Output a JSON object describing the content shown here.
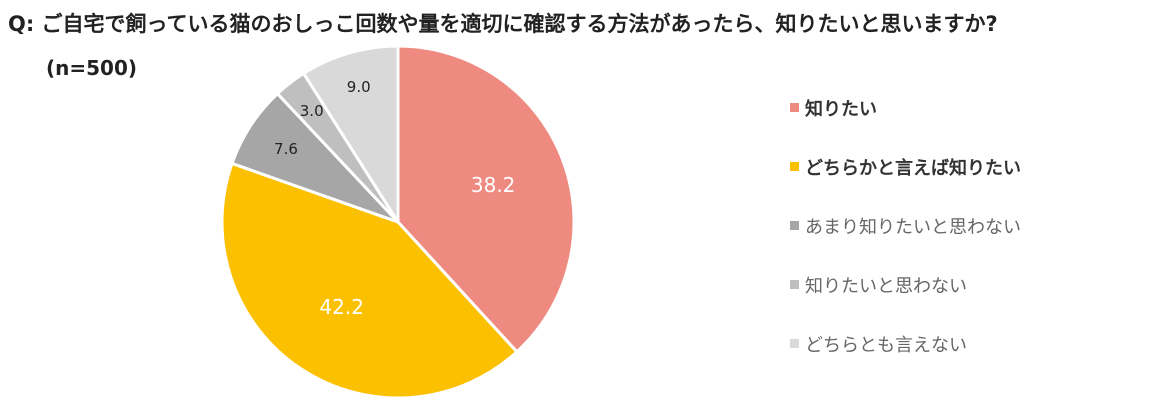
{
  "title": "Q: ご自宅で飼っている猫のおしっこ回数や量を適切に確認する方法があったら、知りたいと思いますか?",
  "subtitle": "(n=500)",
  "chart_data": {
    "type": "pie",
    "start_angle_deg": 0,
    "direction": "clockwise",
    "slice_border_color": "#ffffff",
    "slices": [
      {
        "label": "知りたい",
        "value": 38.2,
        "value_label": "38.2",
        "color": "#EE8A80",
        "label_color": "#ffffff",
        "emphasis": true
      },
      {
        "label": "どちらかと言えば知りたい",
        "value": 42.2,
        "value_label": "42.2",
        "color": "#FBC000",
        "label_color": "#ffffff",
        "emphasis": true
      },
      {
        "label": "あまり知りたいと思わない",
        "value": 7.6,
        "value_label": "7.6",
        "color": "#A6A6A6",
        "label_color": "#222222",
        "emphasis": false
      },
      {
        "label": "知りたいと思わない",
        "value": 3.0,
        "value_label": "3.0",
        "color": "#BFBFBF",
        "label_color": "#222222",
        "emphasis": false
      },
      {
        "label": "どちらとも言えない",
        "value": 9.0,
        "value_label": "9.0",
        "color": "#D9D9D9",
        "label_color": "#222222",
        "emphasis": false
      }
    ],
    "legend_position": "right"
  }
}
